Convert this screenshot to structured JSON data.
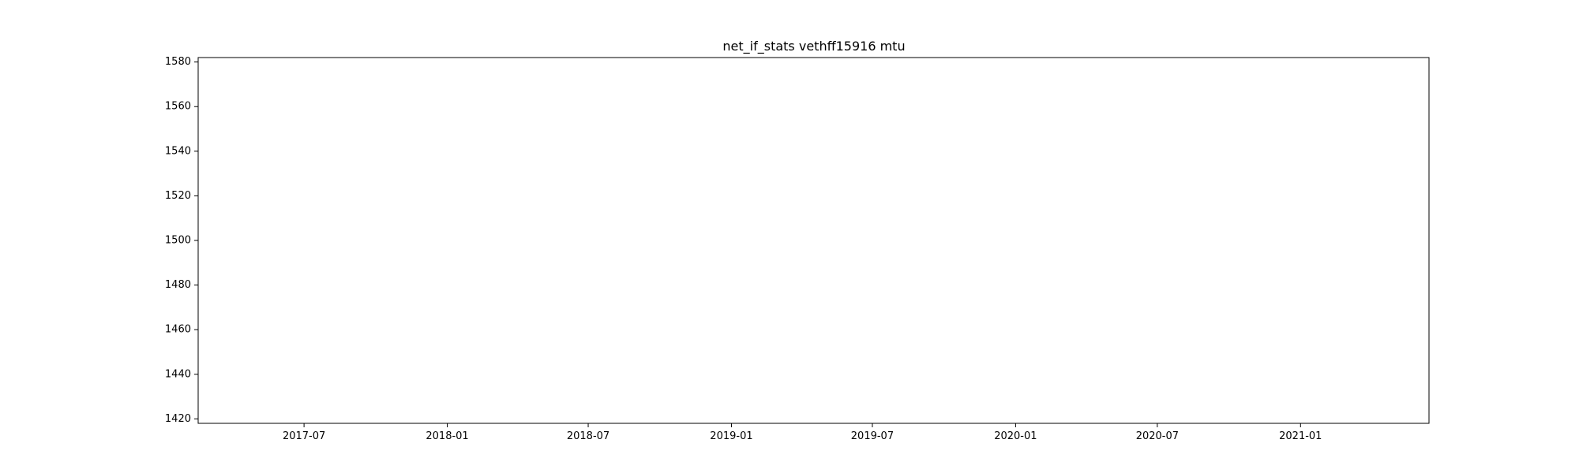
{
  "chart_data": {
    "type": "line",
    "title": "net_if_stats vethff15916 mtu",
    "xlabel": "",
    "ylabel": "",
    "x_axis_type": "date",
    "xlim": [
      "2017-02-15",
      "2021-06-15"
    ],
    "ylim": [
      1418,
      1582
    ],
    "x_ticks": [
      "2017-07-01",
      "2018-01-01",
      "2018-07-01",
      "2019-01-01",
      "2019-07-01",
      "2020-01-01",
      "2020-07-01",
      "2021-01-01"
    ],
    "x_tick_labels": [
      "2017-07",
      "2018-01",
      "2018-07",
      "2019-01",
      "2019-07",
      "2020-01",
      "2020-07",
      "2021-01"
    ],
    "y_ticks": [
      1420,
      1440,
      1460,
      1480,
      1500,
      1520,
      1540,
      1560,
      1580
    ],
    "y_tick_labels": [
      "1420",
      "1440",
      "1460",
      "1480",
      "1500",
      "1520",
      "1540",
      "1560",
      "1580"
    ],
    "series": [
      {
        "x": [],
        "y": []
      }
    ],
    "grid": false,
    "colors": {
      "axis": "#000000",
      "background": "#ffffff",
      "line": "#1f77b4"
    }
  }
}
